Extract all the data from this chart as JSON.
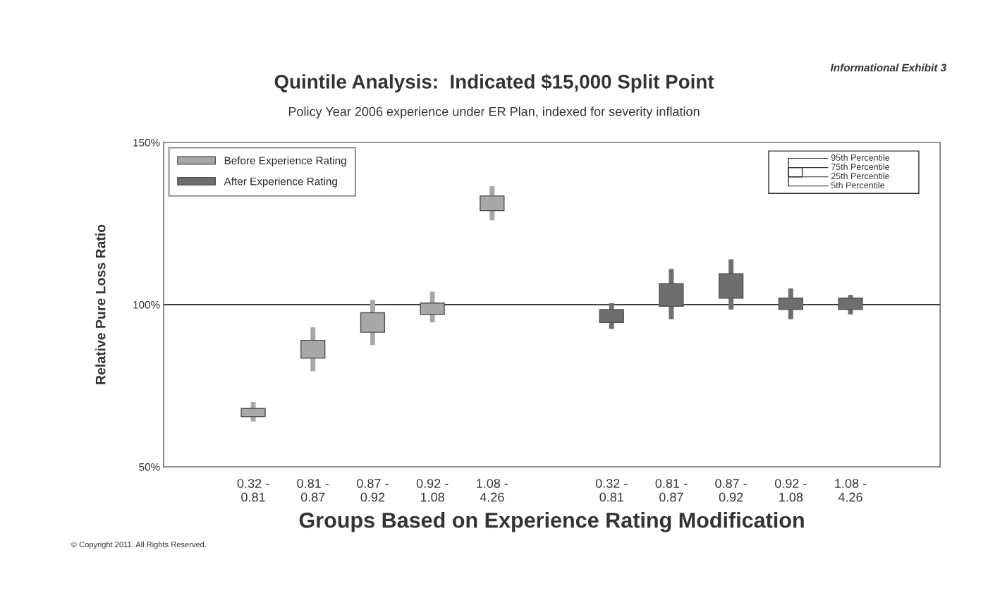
{
  "chart_data": {
    "type": "box",
    "title": "Quintile Analysis:  Indicated $15,000 Split Point",
    "subtitle": "Policy Year 2006 experience under ER Plan, indexed for severity inflation",
    "xlabel": "Groups Based on Experience Rating Modification",
    "ylabel": "Relative Pure Loss Ratio",
    "categories": [
      null,
      "0.32 -\n0.81",
      "0.81 -\n0.87",
      "0.87 -\n0.92",
      "0.92 -\n1.08",
      "1.08 -\n4.26",
      null,
      "0.32 -\n0.81",
      "0.81 -\n0.87",
      "0.87 -\n0.92",
      "0.92 -\n1.08",
      "1.08 -\n4.26",
      null
    ],
    "series": [
      {
        "name": "Before Experience Rating",
        "color": "#a8a8a8",
        "boxes": [
          null,
          {
            "low": 64,
            "q1": 65.5,
            "q3": 68,
            "high": 70
          },
          {
            "low": 79.5,
            "q1": 83.5,
            "q3": 89,
            "high": 93
          },
          {
            "low": 87.5,
            "q1": 91.5,
            "q3": 97.5,
            "high": 101.5
          },
          {
            "low": 94.5,
            "q1": 97,
            "q3": 100.5,
            "high": 104
          },
          {
            "low": 126,
            "q1": 129,
            "q3": 133.5,
            "high": 136.5
          },
          null,
          null,
          null,
          null,
          null,
          null,
          null
        ]
      },
      {
        "name": "After Experience Rating",
        "color": "#6e6e6e",
        "boxes": [
          null,
          null,
          null,
          null,
          null,
          null,
          null,
          {
            "low": 92.5,
            "q1": 94.5,
            "q3": 98.5,
            "high": 100.5
          },
          {
            "low": 95.5,
            "q1": 99.5,
            "q3": 106.5,
            "high": 111
          },
          {
            "low": 98.5,
            "q1": 102,
            "q3": 109.5,
            "high": 114
          },
          {
            "low": 95.5,
            "q1": 98.5,
            "q3": 102,
            "high": 105
          },
          {
            "low": 97,
            "q1": 98.5,
            "q3": 102,
            "high": 103
          },
          null
        ]
      }
    ],
    "ylim": [
      50,
      150
    ],
    "yticks": [
      {
        "value": 50,
        "label": "50%"
      },
      {
        "value": 100,
        "label": "100%"
      },
      {
        "value": 150,
        "label": "150%"
      }
    ],
    "ref_lines": [
      {
        "axis": "y",
        "value": 100,
        "color": "#000000"
      }
    ],
    "legend": "top left",
    "grid": false,
    "annotations": [
      "Informational Exhibit 3",
      "© Copyright 2011. All Rights Reserved.",
      "95th Percentile",
      "75th Percentile",
      "25th Percentile",
      "5th Percentile"
    ]
  }
}
